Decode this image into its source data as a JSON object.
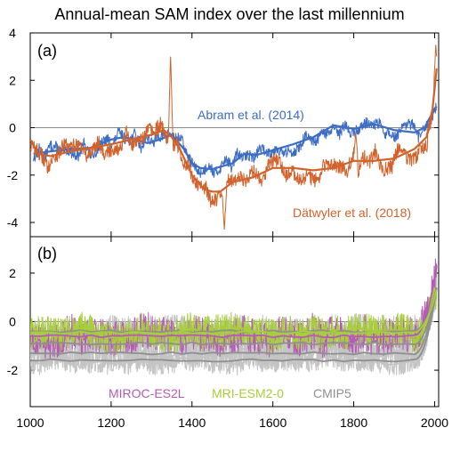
{
  "title": "Annual-mean SAM index over the last millennium",
  "colors": {
    "abram": "#3c6cc4",
    "datwyler": "#d2622b",
    "miroc": "#b55bb5",
    "mri": "#a7cf3a",
    "cmip5": "#8f8f8f",
    "cmip5_light": "#c4c4c4",
    "zero_line": "#8a8a8a",
    "axis": "#000000"
  },
  "chart_data": [
    {
      "type": "line",
      "panel_label": "(a)",
      "xlim": [
        1000,
        2010
      ],
      "ylim": [
        -4.6,
        4
      ],
      "x_ticks": [
        1000,
        1200,
        1400,
        1600,
        1800,
        2000
      ],
      "y_ticks": [
        -4,
        -2,
        0,
        2,
        4
      ],
      "y_tick_labels": [
        "-4",
        "-2",
        "0",
        "2",
        "4"
      ],
      "grid": false,
      "zero_line": true,
      "annotations": [
        {
          "text": "Abram et al. (2014)",
          "series": "abram",
          "x": 1605,
          "y": 0.45
        },
        {
          "text": "Dätwyler et al. (2018)",
          "series": "datwyler",
          "x": 1745,
          "y": -3.55
        }
      ],
      "series": [
        {
          "name": "Abram et al. (2014)",
          "key": "abram",
          "x_range": [
            1008,
            2005
          ],
          "smooth": {
            "x": [
              1008,
              1050,
              1100,
              1150,
              1200,
              1230,
              1260,
              1290,
              1320,
              1350,
              1380,
              1400,
              1420,
              1450,
              1480,
              1500,
              1530,
              1560,
              1600,
              1650,
              1700,
              1750,
              1800,
              1850,
              1900,
              1950,
              1975,
              2000,
              2005
            ],
            "y": [
              -1.1,
              -1.0,
              -0.9,
              -0.85,
              -0.5,
              -0.4,
              -0.5,
              -0.65,
              -0.5,
              -0.3,
              -0.9,
              -1.5,
              -1.7,
              -1.75,
              -1.6,
              -1.5,
              -1.1,
              -1.15,
              -0.95,
              -0.7,
              -0.4,
              0.1,
              -0.05,
              0.15,
              -0.1,
              -0.2,
              0.0,
              0.8,
              0.9
            ]
          },
          "noise_amplitude": 0.45
        },
        {
          "name": "Dätwyler et al. (2018)",
          "key": "datwyler",
          "x_range": [
            1000,
            2005
          ],
          "smooth": {
            "x": [
              1000,
              1020,
              1050,
              1100,
              1150,
              1200,
              1250,
              1300,
              1330,
              1350,
              1370,
              1400,
              1430,
              1450,
              1470,
              1500,
              1550,
              1600,
              1650,
              1700,
              1750,
              1800,
              1850,
              1900,
              1950,
              1980,
              1995,
              2005
            ],
            "y": [
              -0.5,
              -1.1,
              -1.2,
              -1.0,
              -0.85,
              -0.7,
              -0.5,
              -0.3,
              -0.1,
              -0.4,
              -0.9,
              -2.0,
              -2.6,
              -2.7,
              -2.7,
              -2.3,
              -2.1,
              -1.7,
              -1.7,
              -1.8,
              -1.7,
              -1.4,
              -1.4,
              -1.3,
              -0.9,
              -0.4,
              0.8,
              2.5
            ]
          },
          "peaks": [
            {
              "x": 1347,
              "y": 3.0
            },
            {
              "x": 1480,
              "y": -4.3
            },
            {
              "x": 1805,
              "y": -0.2
            },
            {
              "x": 2003,
              "y": 3.5
            }
          ],
          "noise_amplitude": 0.6
        }
      ]
    },
    {
      "type": "line",
      "panel_label": "(b)",
      "xlim": [
        1000,
        2010
      ],
      "ylim": [
        -3.5,
        3.5
      ],
      "x_ticks": [
        1000,
        1200,
        1400,
        1600,
        1800,
        2000
      ],
      "x_tick_labels": [
        "1000",
        "1200",
        "1400",
        "1600",
        "1800",
        "2000"
      ],
      "y_ticks": [
        -2,
        0,
        2
      ],
      "y_tick_labels": [
        "-2",
        "0",
        "2"
      ],
      "grid": false,
      "zero_line": true,
      "legend": [
        {
          "text": "MIROC-ES2L",
          "series": "miroc"
        },
        {
          "text": "MRI-ESM2-0",
          "series": "mri"
        },
        {
          "text": "CMIP5",
          "series": "cmip5"
        }
      ],
      "series": [
        {
          "name": "CMIP5",
          "key": "cmip5",
          "members": [
            {
              "mean": -0.9,
              "amplitude": 0.7
            },
            {
              "mean": -1.3,
              "amplitude": 0.6
            },
            {
              "mean": -1.6,
              "amplitude": 0.5
            },
            {
              "mean": -0.4,
              "amplitude": 0.6
            }
          ],
          "end_value": 1.4
        },
        {
          "name": "MIROC-ES2L",
          "key": "miroc",
          "mean": -0.6,
          "amplitude": 0.75,
          "end_value": 2.3
        },
        {
          "name": "MRI-ESM2-0",
          "key": "mri",
          "mean": -0.45,
          "amplitude": 0.7,
          "end_value": 1.3
        }
      ]
    }
  ]
}
